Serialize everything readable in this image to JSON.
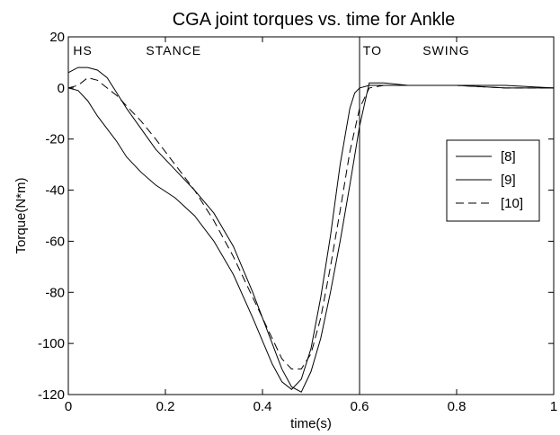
{
  "chart_data": {
    "type": "line",
    "title": "CGA joint torques vs. time for Ankle",
    "xlabel": "time(s)",
    "ylabel": "Torque(N*m)",
    "xlim": [
      0,
      1
    ],
    "ylim": [
      -120,
      20
    ],
    "xticks": [
      0,
      0.2,
      0.4,
      0.6,
      0.8,
      1
    ],
    "xtick_labels": [
      "0",
      "0.2",
      "0.4",
      "0.6",
      "0.8",
      "1"
    ],
    "yticks": [
      20,
      0,
      -20,
      -40,
      -60,
      -80,
      -100,
      -120
    ],
    "ytick_labels": [
      "20",
      "0",
      "-20",
      "-40",
      "-60",
      "-80",
      "-100",
      "-120"
    ],
    "grid": false,
    "legend_position": "right",
    "vertical_line_x": 0.6,
    "annotations": [
      {
        "text": "HS",
        "x": 0.01,
        "y": 13
      },
      {
        "text": "STANCE",
        "x": 0.16,
        "y": 13
      },
      {
        "text": "TO",
        "x": 0.607,
        "y": 13
      },
      {
        "text": "SWING",
        "x": 0.73,
        "y": 13
      }
    ],
    "series": [
      {
        "name": "[8]",
        "style": "solid",
        "x": [
          0,
          0.02,
          0.04,
          0.06,
          0.08,
          0.1,
          0.12,
          0.15,
          0.18,
          0.22,
          0.26,
          0.3,
          0.34,
          0.38,
          0.42,
          0.44,
          0.46,
          0.48,
          0.5,
          0.52,
          0.54,
          0.56,
          0.58,
          0.6,
          0.62,
          0.65,
          0.7,
          0.8,
          0.9,
          1.0
        ],
        "y": [
          6,
          8,
          8,
          7,
          4,
          -2,
          -8,
          -16,
          -24,
          -32,
          -40,
          -49,
          -62,
          -80,
          -100,
          -110,
          -117,
          -119,
          -111,
          -98,
          -80,
          -60,
          -38,
          -15,
          2,
          2,
          1,
          1,
          1,
          0
        ]
      },
      {
        "name": "[9]",
        "style": "solid",
        "x": [
          0,
          0.02,
          0.04,
          0.06,
          0.08,
          0.1,
          0.12,
          0.15,
          0.18,
          0.22,
          0.26,
          0.3,
          0.34,
          0.38,
          0.42,
          0.44,
          0.46,
          0.48,
          0.5,
          0.52,
          0.54,
          0.56,
          0.58,
          0.59,
          0.6,
          0.62,
          0.65,
          0.7,
          0.8,
          0.9,
          1.0
        ],
        "y": [
          0,
          -1,
          -5,
          -11,
          -16,
          -21,
          -27,
          -33,
          -38,
          -43,
          -50,
          -60,
          -73,
          -90,
          -108,
          -115,
          -118,
          -114,
          -102,
          -82,
          -58,
          -30,
          -8,
          -2,
          0,
          1,
          1,
          1,
          1,
          0,
          0
        ]
      },
      {
        "name": "[10]",
        "style": "dashed",
        "x": [
          0,
          0.02,
          0.04,
          0.06,
          0.08,
          0.1,
          0.12,
          0.15,
          0.18,
          0.22,
          0.26,
          0.3,
          0.34,
          0.38,
          0.42,
          0.44,
          0.46,
          0.48,
          0.5,
          0.52,
          0.54,
          0.56,
          0.58,
          0.6,
          0.62,
          0.65,
          0.7,
          0.8,
          0.9,
          1.0
        ],
        "y": [
          0,
          1,
          4,
          3,
          0,
          -3,
          -7,
          -13,
          -20,
          -30,
          -40,
          -52,
          -66,
          -82,
          -98,
          -106,
          -110,
          -110,
          -104,
          -90,
          -70,
          -48,
          -25,
          -8,
          0,
          1,
          1,
          1,
          0,
          0
        ]
      }
    ]
  }
}
